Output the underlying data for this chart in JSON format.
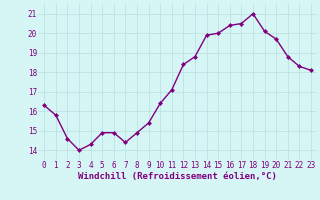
{
  "x": [
    0,
    1,
    2,
    3,
    4,
    5,
    6,
    7,
    8,
    9,
    10,
    11,
    12,
    13,
    14,
    15,
    16,
    17,
    18,
    19,
    20,
    21,
    22,
    23
  ],
  "y": [
    16.3,
    15.8,
    14.6,
    14.0,
    14.3,
    14.9,
    14.9,
    14.4,
    14.9,
    15.4,
    16.4,
    17.1,
    18.4,
    18.8,
    19.9,
    20.0,
    20.4,
    20.5,
    21.0,
    20.1,
    19.7,
    18.8,
    18.3,
    18.1
  ],
  "line_color": "#800080",
  "marker": "D",
  "marker_size": 2,
  "bg_color": "#d6f5f5",
  "grid_color": "#b8dede",
  "xlabel": "Windchill (Refroidissement éolien,°C)",
  "xlabel_color": "#800080",
  "xlabel_fontsize": 6.5,
  "tick_color": "#800080",
  "ylim": [
    13.5,
    21.5
  ],
  "yticks": [
    14,
    15,
    16,
    17,
    18,
    19,
    20,
    21
  ],
  "xticks": [
    0,
    1,
    2,
    3,
    4,
    5,
    6,
    7,
    8,
    9,
    10,
    11,
    12,
    13,
    14,
    15,
    16,
    17,
    18,
    19,
    20,
    21,
    22,
    23
  ],
  "tick_fontsize": 5.5,
  "linewidth": 1.0
}
